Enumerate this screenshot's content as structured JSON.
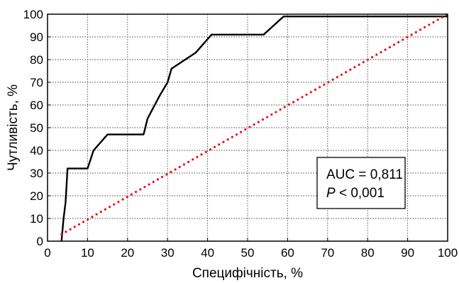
{
  "chart_data": {
    "type": "line",
    "xlabel": "Специфічність, %",
    "ylabel": "Чутливість, %",
    "xlim": [
      0,
      100
    ],
    "ylim": [
      0,
      100
    ],
    "x_ticks": [
      0,
      10,
      20,
      30,
      40,
      50,
      60,
      70,
      80,
      90,
      100
    ],
    "y_ticks": [
      0,
      10,
      20,
      30,
      40,
      50,
      60,
      70,
      80,
      90,
      100
    ],
    "grid": true,
    "series": [
      {
        "style": "solid",
        "color": "#000000",
        "x": [
          3.5,
          4,
          4.5,
          5,
          10,
          11.5,
          15,
          19,
          24,
          25,
          28,
          30,
          31,
          37,
          41,
          45,
          54,
          59,
          100
        ],
        "y": [
          0,
          10,
          17,
          32,
          32,
          40,
          47,
          47,
          47,
          54,
          64,
          70,
          76,
          83,
          91,
          91,
          91,
          99,
          99
        ]
      },
      {
        "style": "dotted",
        "color": "#e8141c",
        "x": [
          3.5,
          100
        ],
        "y": [
          3,
          100
        ]
      }
    ],
    "annotation": {
      "line1": "AUC = 0,811",
      "line2_italic": "P",
      "line2_rest": " < 0,001"
    }
  }
}
